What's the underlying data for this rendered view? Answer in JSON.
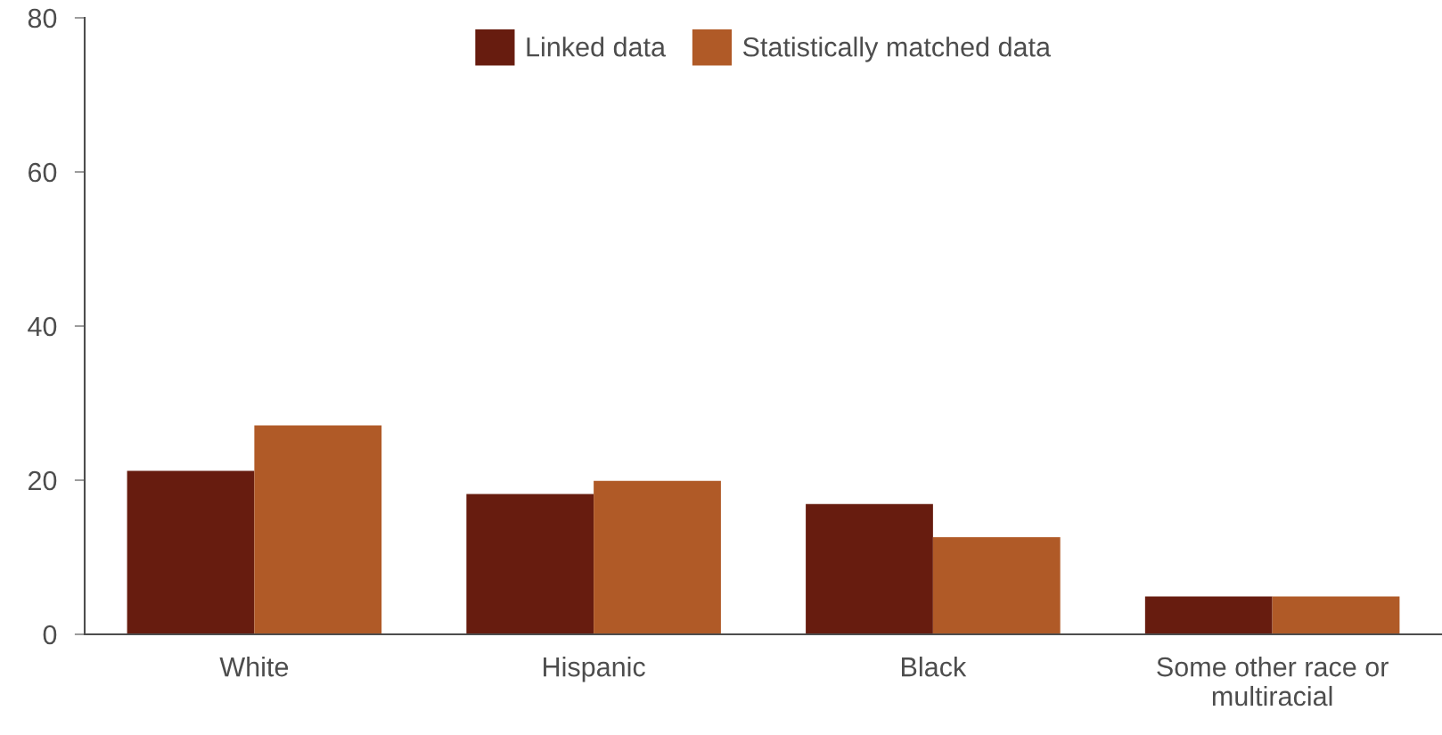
{
  "chart_data": {
    "type": "bar",
    "categories": [
      "White",
      "Hispanic",
      "Black",
      "Some other race or\nmultiracial"
    ],
    "series": [
      {
        "name": "Linked data",
        "color": "#671c0f",
        "values": [
          21.2,
          18.2,
          16.9,
          4.9
        ]
      },
      {
        "name": "Statistically matched data",
        "color": "#b05a27",
        "values": [
          27.1,
          19.9,
          12.6,
          4.9
        ]
      }
    ],
    "ylim": [
      0,
      80
    ],
    "yticks": [
      0,
      20,
      40,
      60,
      80
    ],
    "grid": false,
    "legend": "top"
  }
}
